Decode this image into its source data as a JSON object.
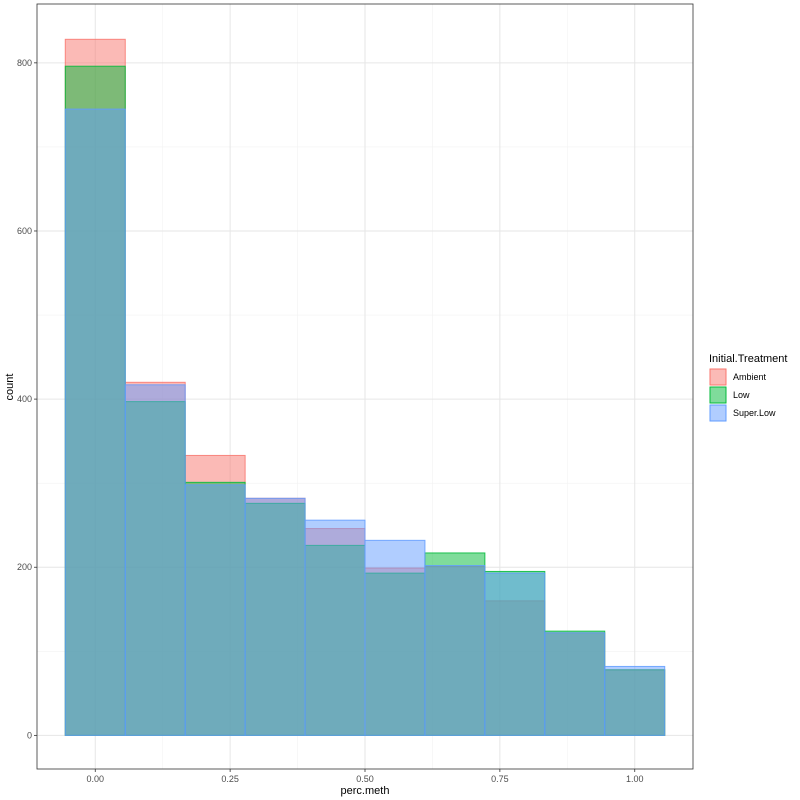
{
  "chart_data": {
    "type": "bar",
    "subtype": "overlapping-histogram",
    "title": "",
    "xlabel": "perc.meth",
    "ylabel": "count",
    "xlim": [
      -0.108,
      1.108
    ],
    "ylim": [
      -40,
      870
    ],
    "x_ticks": [
      0,
      0.25,
      0.5,
      0.75,
      1
    ],
    "x_tick_labels": [
      "0.00",
      "0.25",
      "0.50",
      "0.75",
      "1.00"
    ],
    "y_ticks": [
      0,
      200,
      400,
      600,
      800
    ],
    "y_tick_labels": [
      "0",
      "200",
      "400",
      "600",
      "800"
    ],
    "grid": true,
    "bins": [
      [
        -0.0556,
        0.0556
      ],
      [
        0.0556,
        0.1667
      ],
      [
        0.1667,
        0.2778
      ],
      [
        0.2778,
        0.3889
      ],
      [
        0.3889,
        0.5
      ],
      [
        0.5,
        0.6111
      ],
      [
        0.6111,
        0.7222
      ],
      [
        0.7222,
        0.8333
      ],
      [
        0.8333,
        0.9444
      ],
      [
        0.9444,
        1.0556
      ]
    ],
    "legend": {
      "title": "Initial.Treatment",
      "position": "right"
    },
    "series": [
      {
        "name": "Ambient",
        "fill": "#F8766D",
        "stroke": "#F8766D",
        "values": [
          828,
          420,
          333,
          282,
          246,
          199,
          201,
          160,
          122,
          78
        ]
      },
      {
        "name": "Low",
        "fill": "#00BA38",
        "stroke": "#00BA38",
        "values": [
          796,
          397,
          301,
          276,
          226,
          193,
          217,
          195,
          124,
          78
        ]
      },
      {
        "name": "Super.Low",
        "fill": "#619CFF",
        "stroke": "#619CFF",
        "values": [
          745,
          417,
          298,
          282,
          256,
          232,
          202,
          193,
          122,
          82
        ]
      }
    ]
  }
}
